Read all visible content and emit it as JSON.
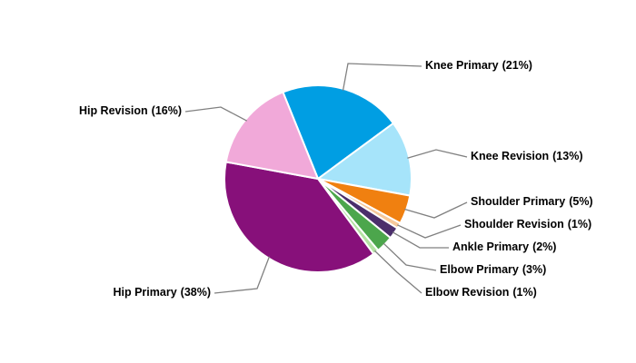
{
  "chart_data": {
    "type": "pie",
    "categories": [
      "Knee Primary",
      "Knee Revision",
      "Shoulder Primary",
      "Shoulder Revision",
      "Ankle Primary",
      "Elbow Primary",
      "Elbow Revision",
      "Hip Primary",
      "Hip Revision"
    ],
    "values": [
      21,
      13,
      5,
      1,
      2,
      3,
      1,
      38,
      16
    ],
    "value_labels": [
      "(21%)",
      "(13%)",
      "(5%)",
      "(1%)",
      "(2%)",
      "(3%)",
      "(1%)",
      "(38%)",
      "(16%)"
    ],
    "colors": [
      "#009ee3",
      "#a6e4fa",
      "#f08010",
      "#f6c89a",
      "#4b2e6b",
      "#4ca64c",
      "#b4e2a4",
      "#87107a",
      "#f1a9d9"
    ]
  }
}
